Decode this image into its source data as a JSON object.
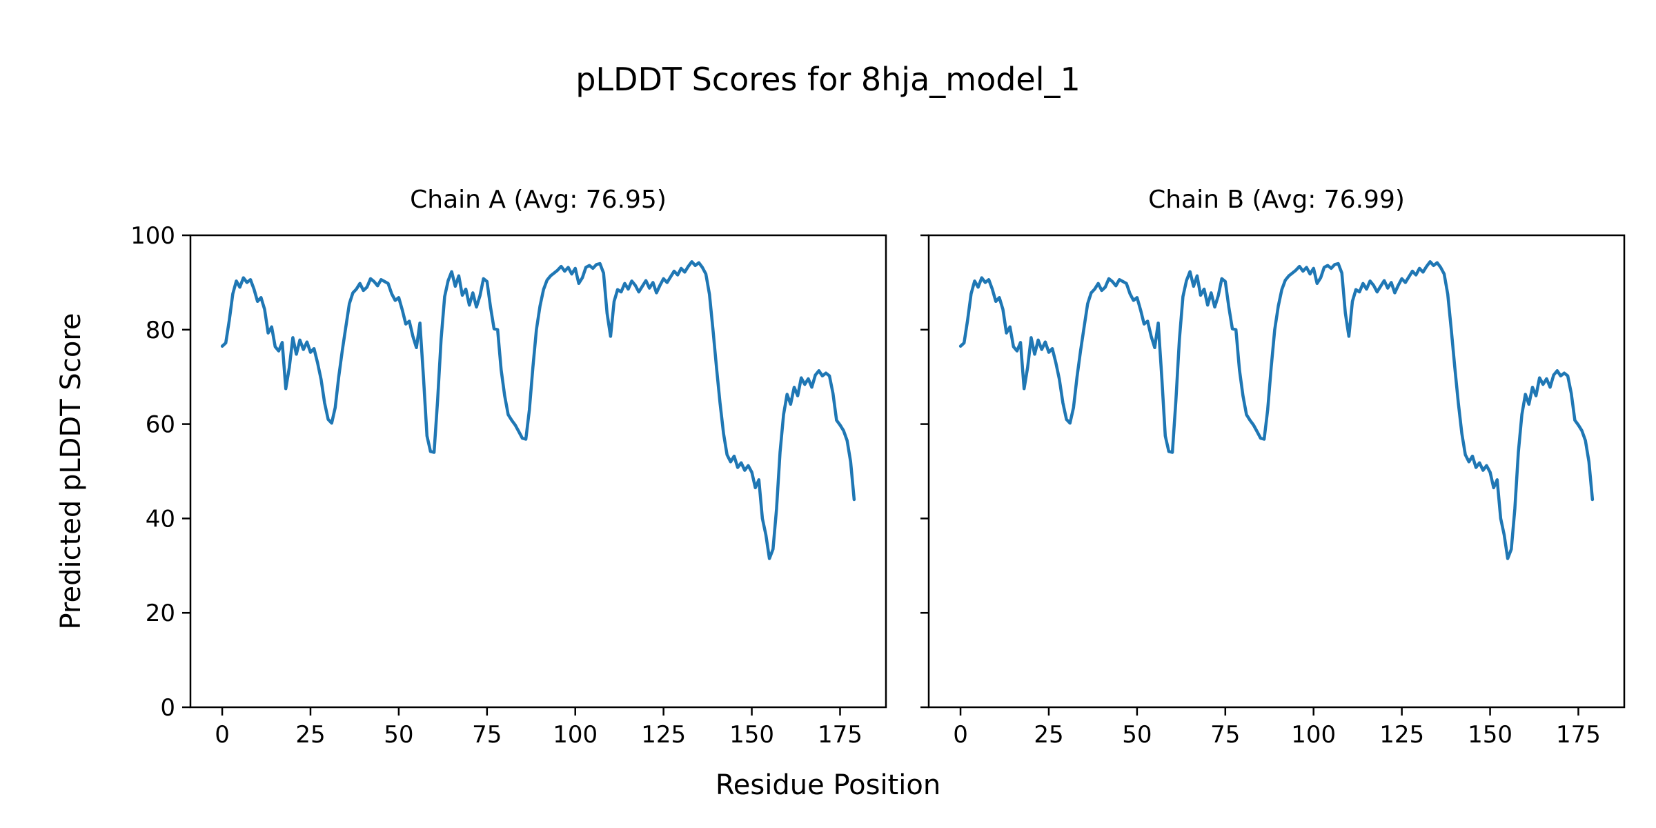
{
  "figure": {
    "title": "pLDDT Scores for 8hja_model_1",
    "xlabel": "Residue Position",
    "ylabel": "Predicted pLDDT Score",
    "background_color": "#ffffff",
    "text_color": "#000000",
    "spine_color": "#000000"
  },
  "chart_data": [
    {
      "type": "line",
      "title": "Chain A (Avg: 76.95)",
      "series_name": "Chain A pLDDT",
      "average": 76.95,
      "line_color": "#1f77b4",
      "xlim": [
        -9,
        188
      ],
      "ylim": [
        0,
        100
      ],
      "x_ticks": [
        0,
        25,
        50,
        75,
        100,
        125,
        150,
        175
      ],
      "y_ticks": [
        0,
        20,
        40,
        60,
        80,
        100
      ],
      "y_tick_labels_visible": true,
      "grid": false,
      "legend": "none",
      "x_start": 0,
      "x_step": 1,
      "values": [
        76.5,
        77.2,
        82.0,
        87.6,
        90.3,
        89.0,
        91.0,
        90.0,
        90.6,
        88.6,
        86.0,
        86.8,
        84.3,
        79.3,
        80.6,
        76.4,
        75.5,
        77.3,
        67.5,
        72.0,
        78.3,
        74.8,
        77.8,
        75.8,
        77.4,
        75.2,
        76.0,
        73.0,
        69.5,
        64.5,
        61.0,
        60.2,
        63.5,
        70.0,
        75.5,
        80.5,
        85.5,
        87.8,
        88.6,
        89.8,
        88.3,
        89.0,
        90.8,
        90.2,
        89.3,
        90.6,
        90.2,
        89.8,
        87.6,
        86.2,
        86.8,
        84.2,
        81.2,
        81.8,
        78.6,
        76.2,
        81.4,
        70.0,
        57.5,
        54.2,
        54.0,
        65.0,
        78.0,
        87.0,
        90.4,
        92.3,
        89.2,
        91.4,
        87.3,
        88.6,
        85.2,
        87.8,
        84.8,
        87.2,
        90.8,
        90.2,
        84.8,
        80.2,
        80.0,
        71.5,
        66.0,
        62.0,
        60.8,
        59.8,
        58.4,
        57.0,
        56.8,
        63.0,
        72.0,
        80.0,
        85.0,
        88.5,
        90.5,
        91.4,
        92.0,
        92.6,
        93.4,
        92.4,
        93.2,
        91.8,
        93.0,
        89.8,
        91.0,
        93.2,
        93.6,
        93.0,
        93.8,
        94.0,
        92.0,
        83.5,
        78.6,
        86.0,
        88.5,
        88.0,
        89.8,
        88.6,
        90.3,
        89.4,
        88.0,
        89.2,
        90.4,
        88.8,
        90.0,
        87.8,
        89.4,
        90.8,
        90.0,
        91.2,
        92.4,
        91.6,
        93.0,
        92.2,
        93.4,
        94.4,
        93.6,
        94.2,
        93.2,
        91.8,
        87.5,
        80.0,
        72.0,
        64.5,
        58.0,
        53.5,
        52.0,
        53.2,
        50.8,
        51.8,
        50.2,
        51.2,
        49.8,
        46.5,
        48.2,
        40.0,
        36.5,
        31.5,
        33.5,
        42.0,
        54.0,
        62.0,
        66.3,
        64.2,
        67.8,
        66.0,
        69.8,
        68.4,
        69.6,
        67.8,
        70.4,
        71.3,
        70.2,
        70.8,
        70.2,
        66.5,
        60.8,
        59.8,
        58.6,
        56.5,
        52.0,
        44.0
      ]
    },
    {
      "type": "line",
      "title": "Chain B (Avg: 76.99)",
      "series_name": "Chain B pLDDT",
      "average": 76.99,
      "line_color": "#1f77b4",
      "xlim": [
        -9,
        188
      ],
      "ylim": [
        0,
        100
      ],
      "x_ticks": [
        0,
        25,
        50,
        75,
        100,
        125,
        150,
        175
      ],
      "y_ticks": [
        0,
        20,
        40,
        60,
        80,
        100
      ],
      "y_tick_labels_visible": false,
      "grid": false,
      "legend": "none",
      "x_start": 0,
      "x_step": 1,
      "values": [
        76.5,
        77.2,
        82.0,
        87.6,
        90.3,
        89.0,
        91.0,
        90.0,
        90.6,
        88.6,
        86.0,
        86.8,
        84.3,
        79.3,
        80.6,
        76.4,
        75.5,
        77.3,
        67.5,
        72.0,
        78.3,
        74.8,
        77.8,
        75.8,
        77.4,
        75.2,
        76.0,
        73.0,
        69.5,
        64.5,
        61.0,
        60.2,
        63.5,
        70.0,
        75.5,
        80.5,
        85.5,
        87.8,
        88.6,
        89.8,
        88.3,
        89.0,
        90.8,
        90.2,
        89.3,
        90.6,
        90.2,
        89.8,
        87.6,
        86.2,
        86.8,
        84.2,
        81.2,
        81.8,
        78.6,
        76.2,
        81.4,
        70.0,
        57.5,
        54.2,
        54.0,
        65.0,
        78.0,
        87.0,
        90.4,
        92.3,
        89.2,
        91.4,
        87.3,
        88.6,
        85.2,
        87.8,
        84.8,
        87.2,
        90.8,
        90.2,
        84.8,
        80.2,
        80.0,
        71.5,
        66.0,
        62.0,
        60.8,
        59.8,
        58.4,
        57.0,
        56.8,
        63.0,
        72.0,
        80.0,
        85.0,
        88.5,
        90.5,
        91.4,
        92.0,
        92.6,
        93.4,
        92.4,
        93.2,
        91.8,
        93.0,
        89.8,
        91.0,
        93.2,
        93.6,
        93.0,
        93.8,
        94.0,
        92.0,
        83.5,
        78.6,
        86.0,
        88.5,
        88.0,
        89.8,
        88.6,
        90.3,
        89.4,
        88.0,
        89.2,
        90.4,
        88.8,
        90.0,
        87.8,
        89.4,
        90.8,
        90.0,
        91.2,
        92.4,
        91.6,
        93.0,
        92.2,
        93.4,
        94.4,
        93.6,
        94.2,
        93.2,
        91.8,
        87.5,
        80.0,
        72.0,
        64.5,
        58.0,
        53.5,
        52.0,
        53.2,
        50.8,
        51.8,
        50.2,
        51.2,
        49.8,
        46.5,
        48.2,
        40.0,
        36.5,
        31.5,
        33.5,
        42.0,
        54.0,
        62.0,
        66.3,
        64.2,
        67.8,
        66.0,
        69.8,
        68.4,
        69.6,
        67.8,
        70.4,
        71.3,
        70.2,
        70.8,
        70.2,
        66.5,
        60.8,
        59.8,
        58.6,
        56.5,
        52.0,
        44.0
      ]
    }
  ]
}
